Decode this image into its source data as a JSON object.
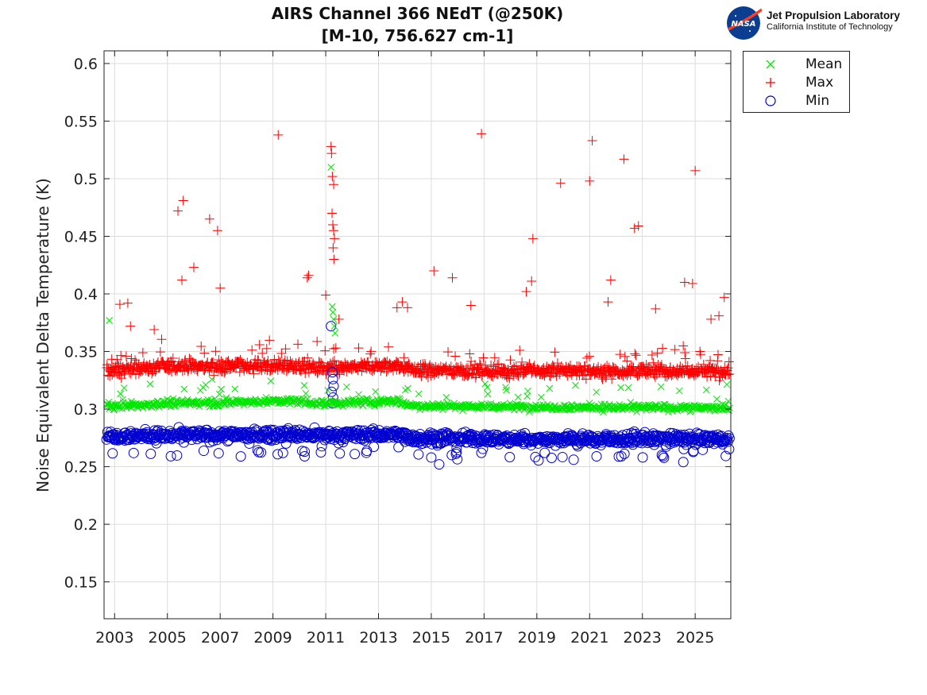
{
  "chart_data": {
    "type": "scatter",
    "title": "AIRS Channel 366 NEdT (@250K)",
    "subtitle": "[M-10, 756.627 cm-1]",
    "ylabel": "Noise Equivalent Delta Temperature (K)",
    "xlabel": "",
    "xlim": [
      2002.6,
      2026.35
    ],
    "ylim": [
      0.118,
      0.611
    ],
    "x_ticks": [
      "2003",
      "2005",
      "2007",
      "2009",
      "2011",
      "2013",
      "2015",
      "2017",
      "2019",
      "2021",
      "2023",
      "2025"
    ],
    "y_ticks": [
      "0.15",
      "0.2",
      "0.25",
      "0.3",
      "0.35",
      "0.4",
      "0.45",
      "0.5",
      "0.55",
      "0.6"
    ],
    "grid": true,
    "legend_position": "outside-top-right",
    "series": [
      {
        "name": "Mean",
        "marker": "x",
        "color": "#00e600",
        "baseline_segments": [
          [
            2002.7,
            0.303
          ],
          [
            2003.0,
            0.302
          ],
          [
            2005.0,
            0.305
          ],
          [
            2009.5,
            0.307
          ],
          [
            2011.0,
            0.305
          ],
          [
            2013.7,
            0.307
          ],
          [
            2014.3,
            0.303
          ],
          [
            2018.0,
            0.302
          ],
          [
            2026.3,
            0.301
          ]
        ],
        "outliers": [
          [
            2002.8,
            0.377
          ],
          [
            2011.2,
            0.51
          ],
          [
            2011.25,
            0.389
          ],
          [
            2011.27,
            0.384
          ],
          [
            2011.3,
            0.378
          ],
          [
            2011.33,
            0.372
          ],
          [
            2011.35,
            0.366
          ]
        ]
      },
      {
        "name": "Max",
        "marker": "+",
        "color": "#ff0000",
        "baseline_segments": [
          [
            2002.7,
            0.333
          ],
          [
            2005.0,
            0.337
          ],
          [
            2009.5,
            0.338
          ],
          [
            2011.0,
            0.335
          ],
          [
            2013.7,
            0.338
          ],
          [
            2014.3,
            0.334
          ],
          [
            2018.0,
            0.333
          ],
          [
            2026.3,
            0.333
          ]
        ],
        "outliers": [
          [
            2003.2,
            0.391
          ],
          [
            2003.5,
            0.392
          ],
          [
            2003.6,
            0.372
          ],
          [
            2004.5,
            0.369
          ],
          [
            2005.4,
            0.472
          ],
          [
            2005.55,
            0.412
          ],
          [
            2005.6,
            0.481
          ],
          [
            2006.0,
            0.423
          ],
          [
            2006.6,
            0.465
          ],
          [
            2006.9,
            0.455
          ],
          [
            2007.0,
            0.405
          ],
          [
            2009.2,
            0.538
          ],
          [
            2010.3,
            0.414
          ],
          [
            2010.35,
            0.416
          ],
          [
            2011.0,
            0.399
          ],
          [
            2011.2,
            0.528
          ],
          [
            2011.22,
            0.522
          ],
          [
            2011.25,
            0.502
          ],
          [
            2011.3,
            0.495
          ],
          [
            2011.24,
            0.47
          ],
          [
            2011.27,
            0.46
          ],
          [
            2011.3,
            0.455
          ],
          [
            2011.33,
            0.448
          ],
          [
            2011.28,
            0.44
          ],
          [
            2011.31,
            0.43
          ],
          [
            2011.5,
            0.378
          ],
          [
            2013.7,
            0.388
          ],
          [
            2013.9,
            0.393
          ],
          [
            2014.1,
            0.388
          ],
          [
            2015.1,
            0.42
          ],
          [
            2015.8,
            0.414
          ],
          [
            2016.5,
            0.39
          ],
          [
            2016.9,
            0.539
          ],
          [
            2018.6,
            0.402
          ],
          [
            2018.8,
            0.411
          ],
          [
            2018.85,
            0.448
          ],
          [
            2019.9,
            0.496
          ],
          [
            2021.0,
            0.498
          ],
          [
            2021.1,
            0.533
          ],
          [
            2021.8,
            0.412
          ],
          [
            2021.7,
            0.393
          ],
          [
            2022.3,
            0.517
          ],
          [
            2022.7,
            0.457
          ],
          [
            2022.85,
            0.459
          ],
          [
            2023.5,
            0.387
          ],
          [
            2024.6,
            0.41
          ],
          [
            2024.9,
            0.409
          ],
          [
            2025.0,
            0.507
          ],
          [
            2025.6,
            0.378
          ],
          [
            2025.9,
            0.381
          ],
          [
            2026.1,
            0.397
          ]
        ]
      },
      {
        "name": "Min",
        "marker": "o",
        "color": "#0000d0",
        "baseline_segments": [
          [
            2002.7,
            0.277
          ],
          [
            2005.0,
            0.277
          ],
          [
            2009.5,
            0.278
          ],
          [
            2011.0,
            0.277
          ],
          [
            2013.7,
            0.278
          ],
          [
            2014.3,
            0.275
          ],
          [
            2018.0,
            0.274
          ],
          [
            2026.3,
            0.274
          ]
        ],
        "outliers": [
          [
            2011.2,
            0.372
          ],
          [
            2011.25,
            0.332
          ],
          [
            2011.27,
            0.326
          ],
          [
            2011.3,
            0.32
          ],
          [
            2011.22,
            0.315
          ],
          [
            2011.28,
            0.31
          ],
          [
            2011.25,
            0.305
          ],
          [
            2015.0,
            0.258
          ],
          [
            2015.3,
            0.252
          ],
          [
            2024.55,
            0.254
          ],
          [
            2010.2,
            0.259
          ],
          [
            2012.1,
            0.261
          ],
          [
            2016.9,
            0.262
          ],
          [
            2019.3,
            0.262
          ],
          [
            2022.2,
            0.259
          ]
        ]
      }
    ]
  },
  "header": {
    "logo_name": "Jet Propulsion Laboratory",
    "logo_subtitle": "California Institute of Technology",
    "logo_badge": "NASA"
  }
}
